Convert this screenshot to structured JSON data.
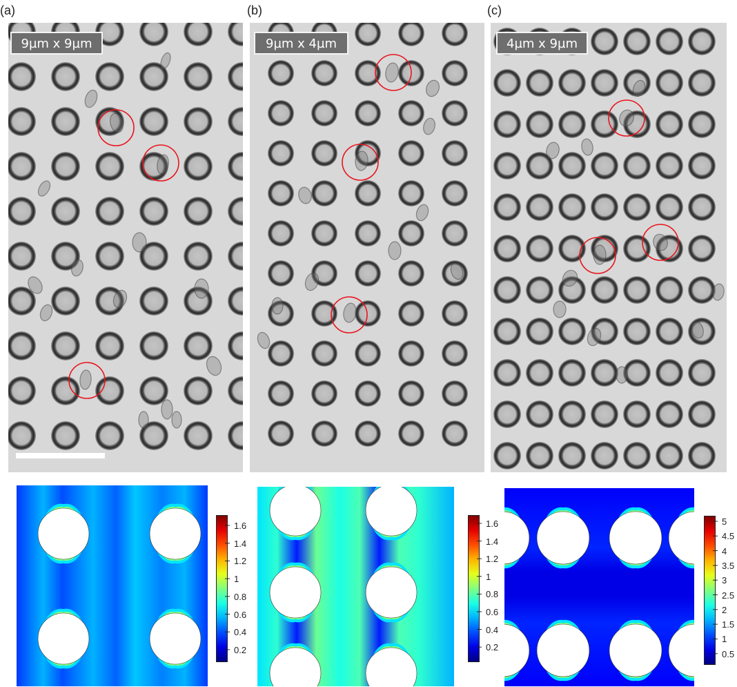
{
  "panels": [
    {
      "label": "(a)",
      "dimension": "9µm x 9µm"
    },
    {
      "label": "(b)",
      "dimension": "9µm x 4µm"
    },
    {
      "label": "(c)",
      "dimension": "4µm x 9µm"
    }
  ],
  "colorbars": [
    {
      "ticks": [
        "1.6",
        "1.4",
        "1.2",
        "1",
        "0.8",
        "0.6",
        "0.4",
        "0.2"
      ]
    },
    {
      "ticks": [
        "1.6",
        "1.4",
        "1.2",
        "1",
        "0.8",
        "0.6",
        "0.4",
        "0.2"
      ]
    },
    {
      "ticks": [
        "5",
        "4.5",
        "4",
        "3.5",
        "3",
        "2.5",
        "2",
        "1.5",
        "1",
        "0.5"
      ]
    }
  ],
  "colors": {
    "highlight_circle": "#e8141c",
    "pillar_ring": "#2a2a2a",
    "micrograph_background": "#d8d8d8",
    "jet_low": "#00008f",
    "jet_high": "#800000"
  }
}
